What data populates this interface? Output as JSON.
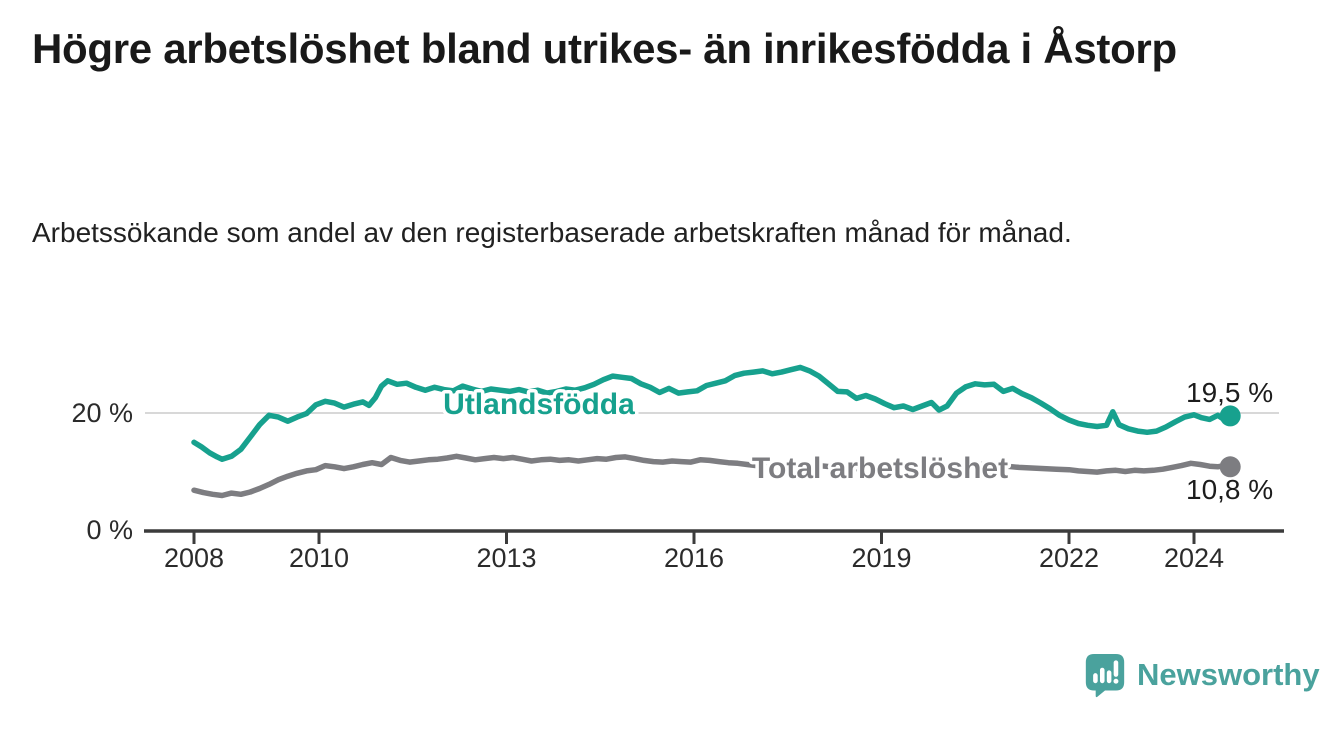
{
  "header": {
    "title": "Högre arbetslöshet bland utrikes- än inrikesfödda i Åstorp",
    "subtitle": "Arbetssökande som andel av den registerbaserade arbetskraften månad för månad."
  },
  "chart_data": {
    "type": "line",
    "unit": "%",
    "ylim": [
      0,
      30
    ],
    "grid_values": [
      20
    ],
    "legend_position": "inline-labels-on-lines",
    "y_ticks": [
      {
        "label": "0 %",
        "value": 0
      },
      {
        "label": "20 %",
        "value": 20
      }
    ],
    "x_ticks": [
      {
        "label": "2008",
        "year": 2008
      },
      {
        "label": "2010",
        "year": 2010
      },
      {
        "label": "2013",
        "year": 2013
      },
      {
        "label": "2016",
        "year": 2016
      },
      {
        "label": "2019",
        "year": 2019
      },
      {
        "label": "2022",
        "year": 2022
      },
      {
        "label": "2024",
        "year": 2024
      }
    ],
    "series": [
      {
        "name": "Utlandsfödda",
        "color": "#17a18e",
        "end_label": "19,5 %",
        "end_value": 19.5,
        "points": [
          [
            2008.0,
            15.0
          ],
          [
            2008.12,
            14.2
          ],
          [
            2008.25,
            13.2
          ],
          [
            2008.37,
            12.5
          ],
          [
            2008.45,
            12.1
          ],
          [
            2008.6,
            12.6
          ],
          [
            2008.75,
            13.8
          ],
          [
            2008.9,
            15.9
          ],
          [
            2009.05,
            18.0
          ],
          [
            2009.2,
            19.6
          ],
          [
            2009.35,
            19.3
          ],
          [
            2009.5,
            18.6
          ],
          [
            2009.65,
            19.3
          ],
          [
            2009.8,
            19.9
          ],
          [
            2009.95,
            21.4
          ],
          [
            2010.1,
            22.0
          ],
          [
            2010.25,
            21.7
          ],
          [
            2010.4,
            21.0
          ],
          [
            2010.55,
            21.5
          ],
          [
            2010.7,
            21.9
          ],
          [
            2010.8,
            21.3
          ],
          [
            2010.9,
            22.6
          ],
          [
            2011.0,
            24.6
          ],
          [
            2011.1,
            25.5
          ],
          [
            2011.25,
            24.9
          ],
          [
            2011.4,
            25.1
          ],
          [
            2011.55,
            24.4
          ],
          [
            2011.7,
            23.9
          ],
          [
            2011.85,
            24.4
          ],
          [
            2012.0,
            24.0
          ],
          [
            2012.15,
            23.8
          ],
          [
            2012.3,
            24.6
          ],
          [
            2012.45,
            24.1
          ],
          [
            2012.6,
            23.7
          ],
          [
            2012.75,
            24.1
          ],
          [
            2012.9,
            23.9
          ],
          [
            2013.05,
            23.7
          ],
          [
            2013.2,
            24.0
          ],
          [
            2013.35,
            23.6
          ],
          [
            2013.5,
            23.9
          ],
          [
            2013.65,
            23.4
          ],
          [
            2013.8,
            23.7
          ],
          [
            2013.95,
            24.1
          ],
          [
            2014.1,
            23.9
          ],
          [
            2014.25,
            24.3
          ],
          [
            2014.4,
            24.9
          ],
          [
            2014.55,
            25.7
          ],
          [
            2014.7,
            26.3
          ],
          [
            2014.85,
            26.1
          ],
          [
            2015.0,
            25.9
          ],
          [
            2015.15,
            25.0
          ],
          [
            2015.3,
            24.4
          ],
          [
            2015.45,
            23.5
          ],
          [
            2015.6,
            24.2
          ],
          [
            2015.75,
            23.4
          ],
          [
            2015.9,
            23.6
          ],
          [
            2016.05,
            23.8
          ],
          [
            2016.2,
            24.7
          ],
          [
            2016.35,
            25.1
          ],
          [
            2016.5,
            25.5
          ],
          [
            2016.65,
            26.4
          ],
          [
            2016.8,
            26.8
          ],
          [
            2016.95,
            27.0
          ],
          [
            2017.1,
            27.2
          ],
          [
            2017.25,
            26.7
          ],
          [
            2017.4,
            27.0
          ],
          [
            2017.55,
            27.4
          ],
          [
            2017.7,
            27.8
          ],
          [
            2017.85,
            27.2
          ],
          [
            2018.0,
            26.3
          ],
          [
            2018.15,
            25.0
          ],
          [
            2018.3,
            23.7
          ],
          [
            2018.45,
            23.6
          ],
          [
            2018.6,
            22.5
          ],
          [
            2018.75,
            23.0
          ],
          [
            2018.9,
            22.4
          ],
          [
            2019.05,
            21.6
          ],
          [
            2019.2,
            20.9
          ],
          [
            2019.35,
            21.2
          ],
          [
            2019.5,
            20.6
          ],
          [
            2019.65,
            21.2
          ],
          [
            2019.8,
            21.8
          ],
          [
            2019.92,
            20.5
          ],
          [
            2020.05,
            21.2
          ],
          [
            2020.2,
            23.4
          ],
          [
            2020.35,
            24.5
          ],
          [
            2020.5,
            25.0
          ],
          [
            2020.65,
            24.8
          ],
          [
            2020.8,
            24.9
          ],
          [
            2020.95,
            23.7
          ],
          [
            2021.1,
            24.2
          ],
          [
            2021.25,
            23.3
          ],
          [
            2021.4,
            22.6
          ],
          [
            2021.55,
            21.7
          ],
          [
            2021.7,
            20.7
          ],
          [
            2021.85,
            19.6
          ],
          [
            2022.0,
            18.8
          ],
          [
            2022.15,
            18.2
          ],
          [
            2022.3,
            17.9
          ],
          [
            2022.45,
            17.7
          ],
          [
            2022.6,
            17.9
          ],
          [
            2022.7,
            20.2
          ],
          [
            2022.8,
            18.0
          ],
          [
            2022.95,
            17.3
          ],
          [
            2023.1,
            16.9
          ],
          [
            2023.25,
            16.7
          ],
          [
            2023.4,
            16.9
          ],
          [
            2023.55,
            17.6
          ],
          [
            2023.7,
            18.5
          ],
          [
            2023.85,
            19.3
          ],
          [
            2024.0,
            19.7
          ],
          [
            2024.12,
            19.2
          ],
          [
            2024.25,
            18.9
          ],
          [
            2024.38,
            19.6
          ],
          [
            2024.48,
            18.9
          ],
          [
            2024.58,
            19.5
          ]
        ]
      },
      {
        "name": "Total arbetslöshet",
        "color": "#7d7d81",
        "end_label": "10,8 %",
        "end_value": 10.8,
        "points": [
          [
            2008.0,
            6.8
          ],
          [
            2008.15,
            6.4
          ],
          [
            2008.3,
            6.1
          ],
          [
            2008.45,
            5.9
          ],
          [
            2008.6,
            6.3
          ],
          [
            2008.75,
            6.1
          ],
          [
            2008.9,
            6.5
          ],
          [
            2009.05,
            7.1
          ],
          [
            2009.2,
            7.8
          ],
          [
            2009.35,
            8.6
          ],
          [
            2009.5,
            9.2
          ],
          [
            2009.65,
            9.7
          ],
          [
            2009.8,
            10.1
          ],
          [
            2009.95,
            10.3
          ],
          [
            2010.1,
            11.0
          ],
          [
            2010.25,
            10.8
          ],
          [
            2010.4,
            10.5
          ],
          [
            2010.55,
            10.8
          ],
          [
            2010.7,
            11.2
          ],
          [
            2010.85,
            11.5
          ],
          [
            2011.0,
            11.2
          ],
          [
            2011.15,
            12.4
          ],
          [
            2011.3,
            11.9
          ],
          [
            2011.45,
            11.6
          ],
          [
            2011.6,
            11.8
          ],
          [
            2011.75,
            12.0
          ],
          [
            2011.9,
            12.1
          ],
          [
            2012.05,
            12.3
          ],
          [
            2012.2,
            12.6
          ],
          [
            2012.35,
            12.3
          ],
          [
            2012.5,
            12.0
          ],
          [
            2012.65,
            12.2
          ],
          [
            2012.8,
            12.4
          ],
          [
            2012.95,
            12.2
          ],
          [
            2013.1,
            12.4
          ],
          [
            2013.25,
            12.1
          ],
          [
            2013.4,
            11.8
          ],
          [
            2013.55,
            12.0
          ],
          [
            2013.7,
            12.1
          ],
          [
            2013.85,
            11.9
          ],
          [
            2014.0,
            12.0
          ],
          [
            2014.15,
            11.8
          ],
          [
            2014.3,
            12.0
          ],
          [
            2014.45,
            12.2
          ],
          [
            2014.6,
            12.1
          ],
          [
            2014.75,
            12.4
          ],
          [
            2014.9,
            12.5
          ],
          [
            2015.05,
            12.2
          ],
          [
            2015.2,
            11.9
          ],
          [
            2015.35,
            11.7
          ],
          [
            2015.5,
            11.6
          ],
          [
            2015.65,
            11.8
          ],
          [
            2015.8,
            11.7
          ],
          [
            2015.95,
            11.6
          ],
          [
            2016.1,
            12.0
          ],
          [
            2016.25,
            11.9
          ],
          [
            2016.4,
            11.7
          ],
          [
            2016.55,
            11.5
          ],
          [
            2016.7,
            11.4
          ],
          [
            2016.85,
            11.2
          ],
          [
            2017.0,
            11.0
          ],
          [
            2017.2,
            10.8
          ],
          [
            2017.4,
            10.9
          ],
          [
            2017.6,
            11.0
          ],
          [
            2017.8,
            11.1
          ],
          [
            2018.0,
            11.0
          ],
          [
            2018.2,
            10.8
          ],
          [
            2018.4,
            10.6
          ],
          [
            2018.6,
            10.5
          ],
          [
            2018.8,
            10.4
          ],
          [
            2019.0,
            10.4
          ],
          [
            2019.2,
            10.3
          ],
          [
            2019.4,
            10.4
          ],
          [
            2019.6,
            10.5
          ],
          [
            2019.8,
            10.7
          ],
          [
            2020.0,
            10.9
          ],
          [
            2020.2,
            11.2
          ],
          [
            2020.4,
            11.3
          ],
          [
            2020.6,
            11.2
          ],
          [
            2020.8,
            11.0
          ],
          [
            2021.0,
            10.9
          ],
          [
            2021.2,
            10.7
          ],
          [
            2021.4,
            10.6
          ],
          [
            2021.6,
            10.5
          ],
          [
            2021.8,
            10.4
          ],
          [
            2022.0,
            10.3
          ],
          [
            2022.15,
            10.1
          ],
          [
            2022.3,
            10.0
          ],
          [
            2022.45,
            9.9
          ],
          [
            2022.6,
            10.1
          ],
          [
            2022.75,
            10.2
          ],
          [
            2022.9,
            10.0
          ],
          [
            2023.05,
            10.2
          ],
          [
            2023.2,
            10.1
          ],
          [
            2023.35,
            10.2
          ],
          [
            2023.5,
            10.4
          ],
          [
            2023.65,
            10.7
          ],
          [
            2023.8,
            11.0
          ],
          [
            2023.95,
            11.4
          ],
          [
            2024.1,
            11.2
          ],
          [
            2024.25,
            10.9
          ],
          [
            2024.38,
            10.8
          ],
          [
            2024.48,
            11.0
          ],
          [
            2024.58,
            10.8
          ]
        ]
      }
    ]
  },
  "footer": {
    "brand": "Newsworthy",
    "brand_color": "#4aa29d",
    "logo_icon": "bar-chart-speech-bubble-icon"
  }
}
